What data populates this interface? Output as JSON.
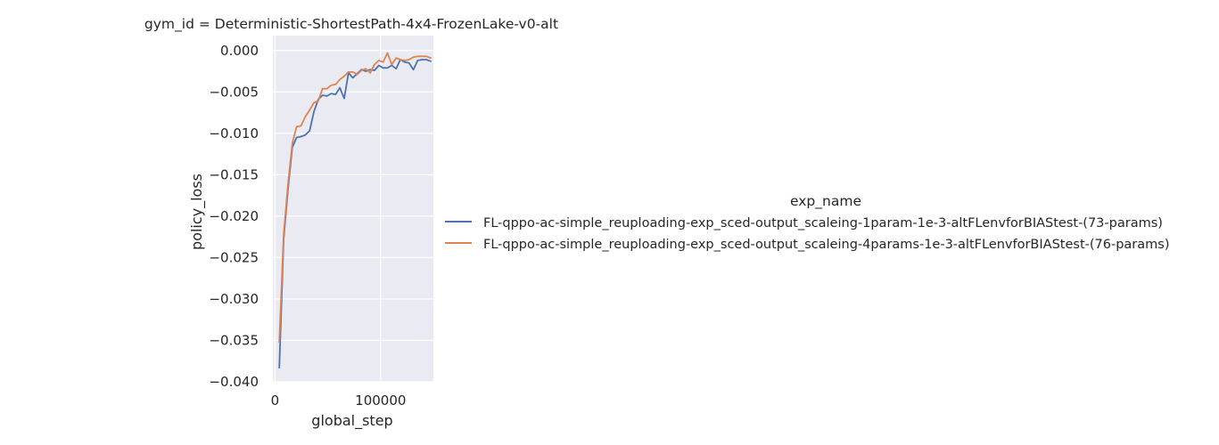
{
  "chart_data": {
    "type": "line",
    "title": "gym_id = Deterministic-ShortestPath-4x4-FrozenLake-v0-alt",
    "xlabel": "global_step",
    "ylabel": "policy_loss",
    "xlim": [
      -2000,
      150000
    ],
    "ylim": [
      -0.04,
      0.0018
    ],
    "x_ticks": [
      0,
      100000
    ],
    "x_tick_labels": [
      "0",
      "100000"
    ],
    "y_ticks": [
      0.0,
      -0.005,
      -0.01,
      -0.015,
      -0.02,
      -0.025,
      -0.03,
      -0.035,
      -0.04
    ],
    "y_tick_labels": [
      "0.000",
      "−0.005",
      "−0.010",
      "−0.015",
      "−0.020",
      "−0.025",
      "−0.030",
      "−0.035",
      "−0.040"
    ],
    "grid": true,
    "legend": {
      "title": "exp_name",
      "placement": "right"
    },
    "series": [
      {
        "name": "FL-qppo-ac-simple_reuploading-exp_sced-output_scaleing-1param-1e-3-altFLenvforBIAStest-(73-params)",
        "color": "#4c72b0",
        "x": [
          4096,
          8192,
          12288,
          16384,
          20480,
          24576,
          28672,
          32768,
          36864,
          40960,
          45056,
          49152,
          53248,
          57344,
          61440,
          65536,
          69632,
          73728,
          77824,
          81920,
          86016,
          90112,
          94208,
          98304,
          102400,
          106496,
          110592,
          114688,
          118784,
          122880,
          126976,
          131072,
          135168,
          139264,
          143360,
          147456
        ],
        "y": [
          -0.0383,
          -0.0228,
          -0.0168,
          -0.0117,
          -0.0105,
          -0.0104,
          -0.0102,
          -0.0097,
          -0.0074,
          -0.0059,
          -0.0054,
          -0.0055,
          -0.0052,
          -0.0053,
          -0.0045,
          -0.0058,
          -0.0027,
          -0.0033,
          -0.0028,
          -0.0023,
          -0.0025,
          -0.0023,
          -0.0024,
          -0.0018,
          -0.0021,
          -0.0021,
          -0.0018,
          -0.0022,
          -0.0011,
          -0.0014,
          -0.0015,
          -0.0023,
          -0.0012,
          -0.0011,
          -0.0011,
          -0.0013
        ]
      },
      {
        "name": "FL-qppo-ac-simple_reuploading-exp_sced-output_scaleing-4params-1e-3-altFLenvforBIAStest-(76-params)",
        "color": "#dd8452",
        "x": [
          4096,
          8192,
          12288,
          16384,
          20480,
          24576,
          28672,
          32768,
          36864,
          40960,
          45056,
          49152,
          53248,
          57344,
          61440,
          65536,
          69632,
          73728,
          77824,
          81920,
          86016,
          90112,
          94208,
          98304,
          102400,
          106496,
          110592,
          114688,
          118784,
          122880,
          126976,
          131072,
          135168,
          139264,
          143360,
          147456
        ],
        "y": [
          -0.0352,
          -0.0222,
          -0.0162,
          -0.0112,
          -0.0092,
          -0.0091,
          -0.008,
          -0.0072,
          -0.0063,
          -0.0061,
          -0.0046,
          -0.0046,
          -0.0042,
          -0.0041,
          -0.0035,
          -0.0031,
          -0.0026,
          -0.0026,
          -0.0029,
          -0.0024,
          -0.0022,
          -0.0027,
          -0.0017,
          -0.0012,
          -0.0014,
          -0.0003,
          -0.0017,
          -0.0009,
          -0.0011,
          -0.0012,
          -0.0011,
          -0.0008,
          -0.0007,
          -0.0007,
          -0.0007,
          -0.0009
        ]
      }
    ]
  }
}
